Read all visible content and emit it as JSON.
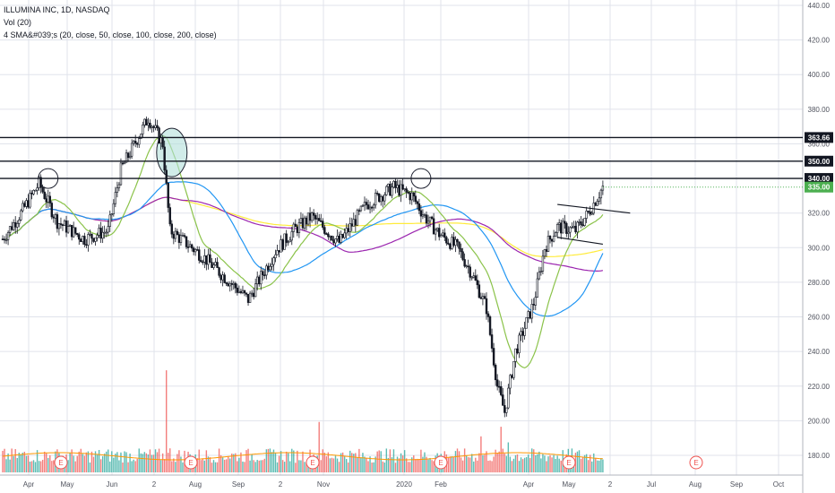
{
  "legend": {
    "symbol": "ILLUMINA INC, 1D, NASDAQ",
    "volume": "Vol (20)",
    "sma": "4 SMA&#039;s (20, close, 50, close, 100, close, 200, close)"
  },
  "colors": {
    "up": "#26a69a",
    "down": "#ef5350",
    "candle_up_body": "#ffffff",
    "candle_body_dark": "#131722",
    "sma20": "#8bc34a",
    "sma50": "#2196f3",
    "sma100": "#9c27b0",
    "sma200": "#ffeb3b",
    "vol_ma": "#ff9800",
    "circle_fill": "#b2dfdb",
    "grid": "#e0e3eb",
    "axis_text": "#50535e",
    "last_price_bg": "#4caf50",
    "level_bg": "#131722",
    "earnings": "#ef5350"
  },
  "chart_data": {
    "type": "candlestick",
    "title": "ILLUMINA INC, 1D, NASDAQ",
    "y_axis": {
      "ticks": [
        "440.00",
        "420.00",
        "400.00",
        "380.00",
        "360.00",
        "340.00",
        "320.00",
        "300.00",
        "280.00",
        "260.00",
        "240.00",
        "220.00",
        "200.00",
        "180.00"
      ],
      "range": [
        180,
        440
      ]
    },
    "x_axis": {
      "ticks": [
        "Apr",
        "May",
        "Jun",
        "2",
        "Aug",
        "Sep",
        "2",
        "Nov",
        "2020",
        "Feb",
        "Apr",
        "May",
        "2",
        "Jul",
        "Aug",
        "Sep",
        "Oct"
      ]
    },
    "horizontal_levels": [
      {
        "label": "363.66",
        "value": 363.66
      },
      {
        "label": "350.00",
        "value": 350
      },
      {
        "label": "340.00",
        "value": 340
      }
    ],
    "last_price": {
      "label": "335.00",
      "value": 335
    },
    "earnings_markers": [
      "E",
      "E",
      "E",
      "E",
      "E",
      "E"
    ],
    "price_path": [
      {
        "t": 0,
        "p": 305
      },
      {
        "t": 10,
        "p": 320
      },
      {
        "t": 20,
        "p": 337
      },
      {
        "t": 30,
        "p": 315
      },
      {
        "t": 45,
        "p": 305
      },
      {
        "t": 58,
        "p": 310
      },
      {
        "t": 65,
        "p": 345
      },
      {
        "t": 80,
        "p": 375
      },
      {
        "t": 88,
        "p": 360
      },
      {
        "t": 92,
        "p": 310
      },
      {
        "t": 110,
        "p": 295
      },
      {
        "t": 125,
        "p": 280
      },
      {
        "t": 135,
        "p": 270
      },
      {
        "t": 150,
        "p": 298
      },
      {
        "t": 160,
        "p": 310
      },
      {
        "t": 170,
        "p": 318
      },
      {
        "t": 185,
        "p": 303
      },
      {
        "t": 200,
        "p": 325
      },
      {
        "t": 215,
        "p": 335
      },
      {
        "t": 225,
        "p": 330
      },
      {
        "t": 232,
        "p": 318
      },
      {
        "t": 240,
        "p": 308
      },
      {
        "t": 250,
        "p": 300
      },
      {
        "t": 258,
        "p": 285
      },
      {
        "t": 266,
        "p": 265
      },
      {
        "t": 272,
        "p": 220
      },
      {
        "t": 276,
        "p": 205
      },
      {
        "t": 282,
        "p": 240
      },
      {
        "t": 292,
        "p": 268
      },
      {
        "t": 298,
        "p": 300
      },
      {
        "t": 305,
        "p": 312
      },
      {
        "t": 315,
        "p": 310
      },
      {
        "t": 322,
        "p": 320
      },
      {
        "t": 330,
        "p": 335
      }
    ],
    "volume_spikes": [
      {
        "t": 90,
        "v": 0.85
      },
      {
        "t": 174,
        "v": 0.42
      },
      {
        "t": 92,
        "v": 0.2
      },
      {
        "t": 25,
        "v": 0.12
      },
      {
        "t": 263,
        "v": 0.3
      },
      {
        "t": 274,
        "v": 0.38
      },
      {
        "t": 278,
        "v": 0.25
      },
      {
        "t": 244,
        "v": 0.15
      }
    ],
    "channel_lines": [
      {
        "from": {
          "t": 305,
          "p": 325
        },
        "to": {
          "t": 345,
          "p": 320
        }
      },
      {
        "from": {
          "t": 305,
          "p": 306
        },
        "to": {
          "t": 330,
          "p": 302
        }
      }
    ],
    "highlight_circles": [
      {
        "t": 25,
        "p": 340
      },
      {
        "t": 93,
        "p": 355
      },
      {
        "t": 230,
        "p": 340
      }
    ]
  }
}
